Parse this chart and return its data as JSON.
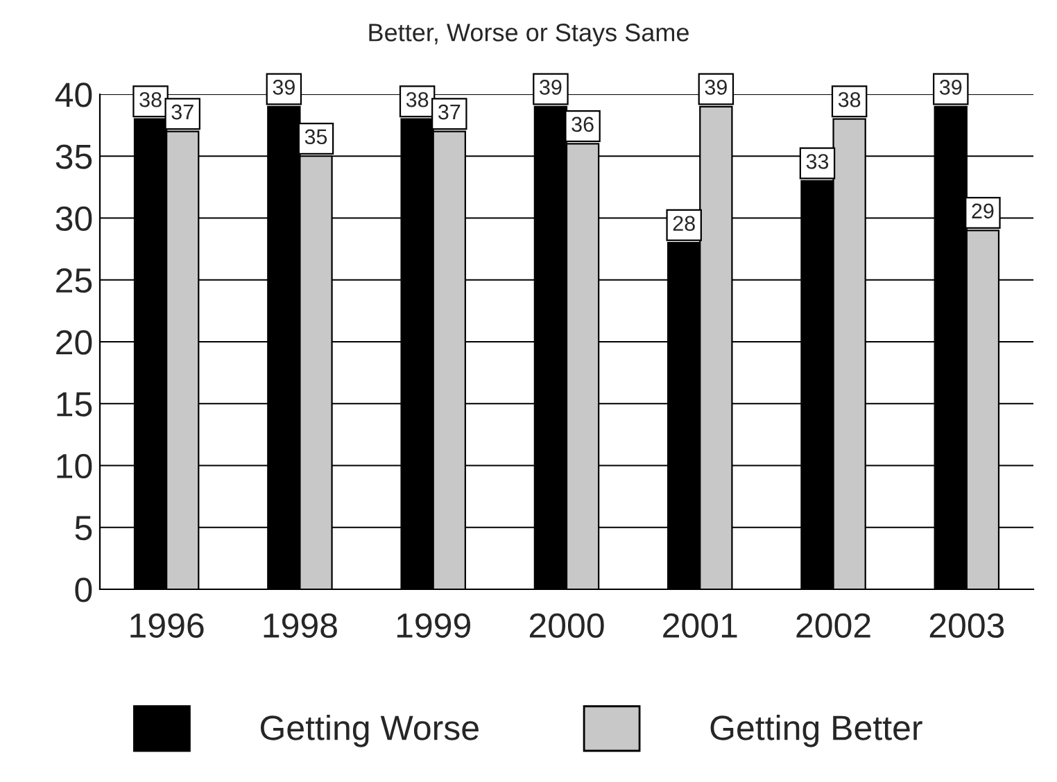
{
  "chart_data": {
    "type": "bar",
    "title": "Better, Worse or Stays Same",
    "categories": [
      "1996",
      "1998",
      "1999",
      "2000",
      "2001",
      "2002",
      "2003"
    ],
    "series": [
      {
        "name": "Getting Worse",
        "color": "#000000",
        "values": [
          38,
          39,
          38,
          39,
          28,
          33,
          39
        ]
      },
      {
        "name": "Getting Better",
        "color": "#c8c8c8",
        "values": [
          37,
          35,
          37,
          36,
          39,
          38,
          29
        ]
      }
    ],
    "ylim": [
      0,
      40
    ],
    "yticks": [
      0,
      5,
      10,
      15,
      20,
      25,
      30,
      35,
      40
    ],
    "grid": "y",
    "legend": "bottom",
    "data_labels": true
  }
}
